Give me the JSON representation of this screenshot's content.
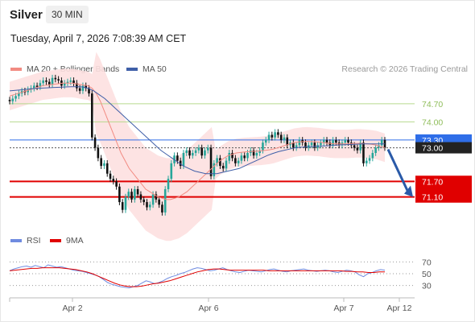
{
  "header": {
    "instrument": "Silver",
    "timeframe": "30 MIN",
    "datetime": "Tuesday, April 7, 2026 7:08:39 AM CET"
  },
  "legend": {
    "ma20": "MA 20 + Bollinger Bands",
    "ma50": "MA 50",
    "rsi": "RSI",
    "ma9": "9MA",
    "copyright": "Research © 2026 Trading Central"
  },
  "colors": {
    "bullish": "#26a69a",
    "bearish": "#111111",
    "ma20": "#f28b82",
    "ma50": "#3f5fa8",
    "bands_fill": "#fde0e0",
    "resistance": "#b6d98e",
    "pivot": "#2f6ee8",
    "support": "#e00000",
    "rsi": "#6f8be0",
    "rsi_ma": "#e00000",
    "arrow": "#2a5aa8"
  },
  "chart_data": [
    {
      "type": "candlestick",
      "x_labels": [
        "Apr 2",
        "Apr 6",
        "Apr 7",
        "Apr 12"
      ],
      "ylim": [
        70.0,
        75.6
      ],
      "ohlc": [],
      "levels": [
        {
          "value": 74.7,
          "label": "74.70",
          "kind": "resistance"
        },
        {
          "value": 74.0,
          "label": "74.00",
          "kind": "resistance"
        },
        {
          "value": 73.3,
          "label": "73.30",
          "kind": "pivot"
        },
        {
          "value": 73.0,
          "label": "73.00",
          "kind": "last"
        },
        {
          "value": 71.7,
          "label": "71.70",
          "kind": "support"
        },
        {
          "value": 71.1,
          "label": "71.10",
          "kind": "support"
        }
      ],
      "closes": [
        74.8,
        74.9,
        75.0,
        75.1,
        75.2,
        75.15,
        75.25,
        75.3,
        75.4,
        75.35,
        75.5,
        75.6,
        75.55,
        75.45,
        75.7,
        75.65,
        75.6,
        75.4,
        75.5,
        75.55,
        75.6,
        75.5,
        75.3,
        75.2,
        75.4,
        75.3,
        75.1,
        73.4,
        73.0,
        72.6,
        72.3,
        72.4,
        72.0,
        71.8,
        71.7,
        71.5,
        70.9,
        70.6,
        71.1,
        71.3,
        71.0,
        71.4,
        71.2,
        71.0,
        70.9,
        70.7,
        70.8,
        71.2,
        71.0,
        70.8,
        70.5,
        71.4,
        71.8,
        72.4,
        72.7,
        72.5,
        72.3,
        72.8,
        72.9,
        72.7,
        72.8,
        72.9,
        73.0,
        72.7,
        72.9,
        73.0,
        71.9,
        72.4,
        72.6,
        72.3,
        72.2,
        72.5,
        72.8,
        72.6,
        72.4,
        72.5,
        72.7,
        72.6,
        72.8,
        72.9,
        72.7,
        72.8,
        72.9,
        73.2,
        73.3,
        73.5,
        73.4,
        73.6,
        73.5,
        73.3,
        73.4,
        73.1,
        73.2,
        73.0,
        73.1,
        73.3,
        73.2,
        73.0,
        73.1,
        73.2,
        73.0,
        73.1,
        73.2,
        73.3,
        73.2,
        73.1,
        73.3,
        73.2,
        73.1,
        73.2,
        73.3,
        73.2,
        73.1,
        73.0,
        72.9,
        73.2,
        72.4,
        72.5,
        72.6,
        72.8,
        73.0,
        73.1,
        73.3,
        73.0
      ],
      "ma20": [
        75.0,
        75.05,
        75.1,
        75.15,
        75.2,
        75.25,
        75.3,
        75.35,
        75.4,
        75.42,
        75.44,
        75.46,
        75.48,
        75.5,
        75.5,
        75.5,
        75.48,
        75.45,
        75.42,
        75.4,
        75.3,
        75.1,
        74.8,
        74.4,
        74.0,
        73.6,
        73.2,
        72.8,
        72.5,
        72.2,
        72.0,
        71.8,
        71.6,
        71.4,
        71.3,
        71.2,
        71.1,
        71.05,
        71.0,
        71.0,
        71.05,
        71.1,
        71.2,
        71.3,
        71.45,
        71.6,
        71.75,
        71.9,
        72.05,
        72.2,
        72.35,
        72.5,
        72.6,
        72.7,
        72.75,
        72.8,
        72.82,
        72.84,
        72.85,
        72.86,
        72.87,
        72.88,
        72.9,
        72.92,
        72.95,
        73.0,
        73.05,
        73.1,
        73.15,
        73.2,
        73.22,
        73.24,
        73.25,
        73.24,
        73.23,
        73.22,
        73.2,
        73.18,
        73.16,
        73.15,
        73.15,
        73.15,
        73.15,
        73.16,
        73.17,
        73.17,
        73.16,
        73.15,
        73.13,
        73.1,
        73.05,
        73.0
      ],
      "ma50": [
        75.2,
        75.22,
        75.24,
        75.26,
        75.28,
        75.3,
        75.31,
        75.32,
        75.33,
        75.34,
        75.35,
        75.36,
        75.36,
        75.35,
        75.3,
        75.2,
        75.05,
        74.9,
        74.7,
        74.5,
        74.3,
        74.1,
        73.9,
        73.7,
        73.5,
        73.3,
        73.1,
        72.9,
        72.75,
        72.6,
        72.45,
        72.3,
        72.2,
        72.1,
        72.05,
        72.0,
        72.0,
        72.0,
        72.05,
        72.1,
        72.15,
        72.2,
        72.3,
        72.4,
        72.5,
        72.6,
        72.7,
        72.78,
        72.85,
        72.9,
        72.95,
        73.0,
        73.02,
        73.04,
        73.05,
        73.06,
        73.07,
        73.08,
        73.1,
        73.11,
        73.12,
        73.13,
        73.14,
        73.15,
        73.15,
        73.15,
        73.15,
        73.15
      ],
      "rsi": [
        55,
        58,
        60,
        62,
        63,
        61,
        64,
        62,
        60,
        65,
        63,
        61,
        62,
        60,
        58,
        56,
        55,
        54,
        52,
        50,
        48,
        45,
        40,
        35,
        32,
        30,
        28,
        27,
        26,
        28,
        30,
        34,
        38,
        36,
        33,
        35,
        38,
        42,
        45,
        47,
        50,
        52,
        55,
        58,
        60,
        59,
        57,
        55,
        56,
        58,
        60,
        57,
        55,
        53,
        52,
        54,
        56,
        55,
        54,
        53,
        55,
        57,
        58,
        56,
        54,
        53,
        55,
        56,
        57,
        58,
        56,
        55,
        54,
        55,
        56,
        55,
        53,
        52,
        54,
        56,
        55,
        53,
        48,
        45,
        50,
        52,
        55,
        57,
        56
      ],
      "rsi_ma": [
        55,
        56,
        57,
        58,
        59,
        59,
        60,
        60,
        60,
        60,
        59,
        58,
        57,
        55,
        53,
        50,
        46,
        42,
        38,
        34,
        31,
        29,
        28,
        28,
        29,
        31,
        33,
        34,
        36,
        38,
        41,
        44,
        47,
        50,
        53,
        55,
        57,
        58,
        58,
        57,
        56,
        56,
        56,
        56,
        56,
        56,
        56,
        55,
        55,
        55,
        55,
        55,
        55,
        55,
        55,
        55,
        55,
        55,
        55,
        55,
        55,
        54,
        54,
        53,
        53,
        52,
        52,
        53,
        53
      ],
      "rsi_levels": [
        "70",
        "50",
        "30"
      ]
    }
  ]
}
